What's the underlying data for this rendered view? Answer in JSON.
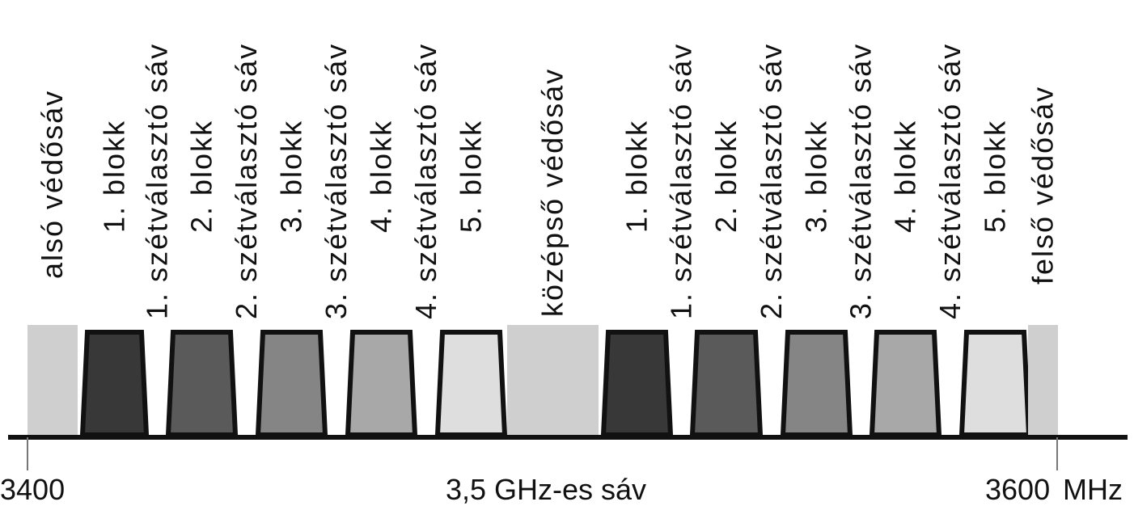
{
  "spectrum": {
    "range_mhz": [
      3400,
      3600
    ],
    "axis_start_label": "3400",
    "axis_end_label": "3600",
    "unit_label": "MHz",
    "center_label": "3,5 GHz-es sáv"
  },
  "bands": [
    {
      "label": "alsó védősáv",
      "kind": "guard",
      "fill": "#cfcfcf"
    },
    {
      "label": "1. blokk",
      "kind": "block",
      "fill": "#383838"
    },
    {
      "label": "1. szétválasztó sáv",
      "kind": "separator"
    },
    {
      "label": "2. blokk",
      "kind": "block",
      "fill": "#5a5a5a"
    },
    {
      "label": "2. szétválasztó sáv",
      "kind": "separator"
    },
    {
      "label": "3. blokk",
      "kind": "block",
      "fill": "#858585"
    },
    {
      "label": "3. szétválasztó sáv",
      "kind": "separator"
    },
    {
      "label": "4. blokk",
      "kind": "block",
      "fill": "#a8a8a8"
    },
    {
      "label": "4. szétválasztó sáv",
      "kind": "separator"
    },
    {
      "label": "5. blokk",
      "kind": "block",
      "fill": "#dedede"
    },
    {
      "label": "középső védősáv",
      "kind": "guard",
      "fill": "#cfcfcf"
    },
    {
      "label": "1. blokk",
      "kind": "block",
      "fill": "#383838"
    },
    {
      "label": "1. szétválasztó sáv",
      "kind": "separator"
    },
    {
      "label": "2. blokk",
      "kind": "block",
      "fill": "#5a5a5a"
    },
    {
      "label": "2. szétválasztó sáv",
      "kind": "separator"
    },
    {
      "label": "3. blokk",
      "kind": "block",
      "fill": "#858585"
    },
    {
      "label": "3. szétválasztó sáv",
      "kind": "separator"
    },
    {
      "label": "4. blokk",
      "kind": "block",
      "fill": "#a8a8a8"
    },
    {
      "label": "4. szétválasztó sáv",
      "kind": "separator"
    },
    {
      "label": "5. blokk",
      "kind": "block",
      "fill": "#dedede"
    },
    {
      "label": "felső védősáv",
      "kind": "guard",
      "fill": "#cfcfcf"
    }
  ],
  "colors": {
    "outline": "#111111",
    "axis": "#111111"
  }
}
